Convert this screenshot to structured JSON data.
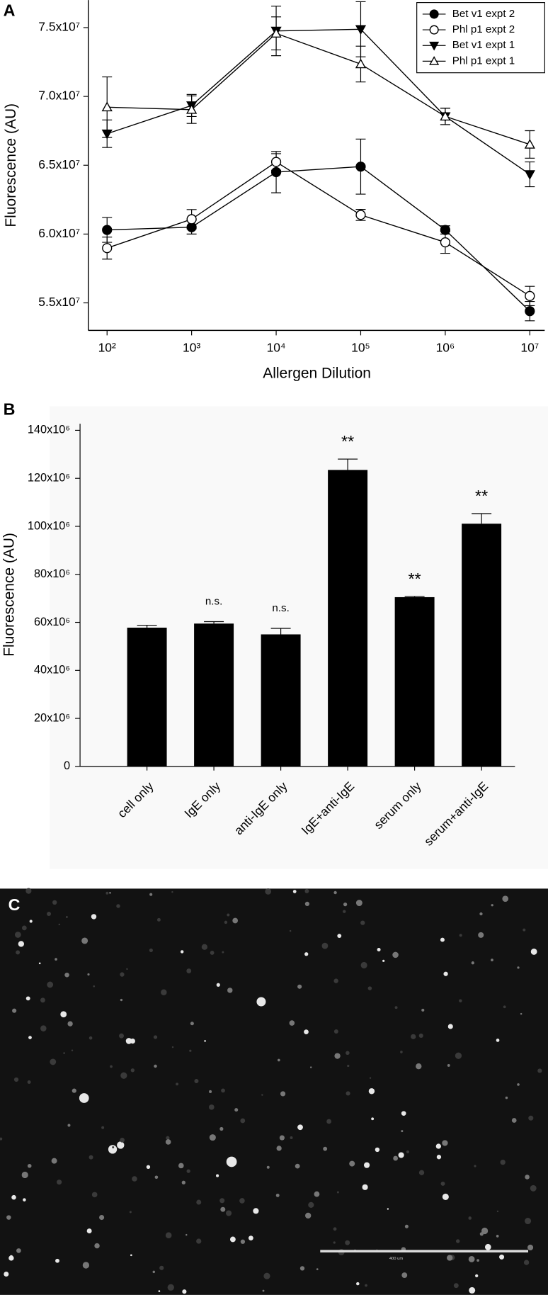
{
  "chart_data": [
    {
      "type": "line",
      "panel_label": "A",
      "y_label": "Fluorescence (AU)",
      "x_label": "Allergen Dilution",
      "log_x": true,
      "x": [
        {
          "value": 100,
          "label": "10²"
        },
        {
          "value": 1000,
          "label": "10³"
        },
        {
          "value": 10000,
          "label": "10⁴"
        },
        {
          "value": 100000,
          "label": "10⁵"
        },
        {
          "value": 1000000,
          "label": "10⁶"
        },
        {
          "value": 10000000,
          "label": "10⁷"
        }
      ],
      "xlim": [
        60,
        15000000
      ],
      "ylim": [
        53000000,
        77000000
      ],
      "yticks": [
        {
          "value": 55000000,
          "label": "5.5x10⁷"
        },
        {
          "value": 60000000,
          "label": "6.0x10⁷"
        },
        {
          "value": 65000000,
          "label": "6.5x10⁷"
        },
        {
          "value": 70000000,
          "label": "7.0x10⁷"
        },
        {
          "value": 75000000,
          "label": "7.5x10⁷"
        }
      ],
      "legend": "upper right",
      "series": [
        {
          "name": "Bet v1 expt 2",
          "color": "#000000",
          "marker": "circle",
          "filled": true,
          "values": [
            60300000,
            60500000,
            64500000,
            64900000,
            60300000,
            54400000
          ],
          "errors": [
            900000,
            500000,
            1500000,
            2000000,
            300000,
            700000
          ]
        },
        {
          "name": "Phl p1 expt 2",
          "color": "#000000",
          "marker": "circle",
          "filled": false,
          "values": [
            58980000,
            61080000,
            65240000,
            61390000,
            59400000,
            55500000
          ],
          "errors": [
            800000,
            700000,
            600000,
            400000,
            800000,
            700000
          ]
        },
        {
          "name": "Bet v1 expt 1",
          "color": "#000000",
          "marker": "triangle-down",
          "filled": true,
          "values": [
            67290000,
            69340000,
            74760000,
            74880000,
            68550000,
            64340000
          ],
          "errors": [
            1000000,
            800000,
            1800000,
            2000000,
            600000,
            900000
          ]
        },
        {
          "name": "Phl p1 expt 1",
          "color": "#000000",
          "marker": "triangle-up",
          "filled": false,
          "values": [
            69220000,
            69040000,
            74580000,
            72350000,
            68550000,
            66510000
          ],
          "errors": [
            2200000,
            1000000,
            1200000,
            1300000,
            600000,
            1000000
          ]
        }
      ]
    },
    {
      "type": "bar",
      "panel_label": "B",
      "y_label": "Fluorescence (AU)",
      "color": "#000000",
      "categories": [
        "cell only",
        "IgE only",
        "anti-IgE only",
        "IgE+anti-IgE",
        "serum only",
        "serum+anti-IgE"
      ],
      "values": [
        57800000,
        59500000,
        55000000,
        123500000,
        70500000,
        101100000
      ],
      "errors": [
        1000000,
        800000,
        2500000,
        4500000,
        300000,
        4200000
      ],
      "significance": [
        null,
        "n.s.",
        "n.s.",
        "**",
        "**",
        "**"
      ],
      "ylim": [
        0,
        140000000
      ],
      "yticks": [
        0,
        {
          "value": 20000000,
          "label": "20x10⁶"
        },
        {
          "value": 40000000,
          "label": "40x10⁶"
        },
        {
          "value": 60000000,
          "label": "60x10⁶"
        },
        {
          "value": 80000000,
          "label": "80x10⁶"
        },
        {
          "value": 100000000,
          "label": "100x10⁶"
        },
        {
          "value": 120000000,
          "label": "120x10⁶"
        },
        {
          "value": 140000000,
          "label": "140x10⁶"
        }
      ]
    }
  ],
  "image": {
    "panel_label": "C",
    "scale_bar_label": "400 um"
  }
}
